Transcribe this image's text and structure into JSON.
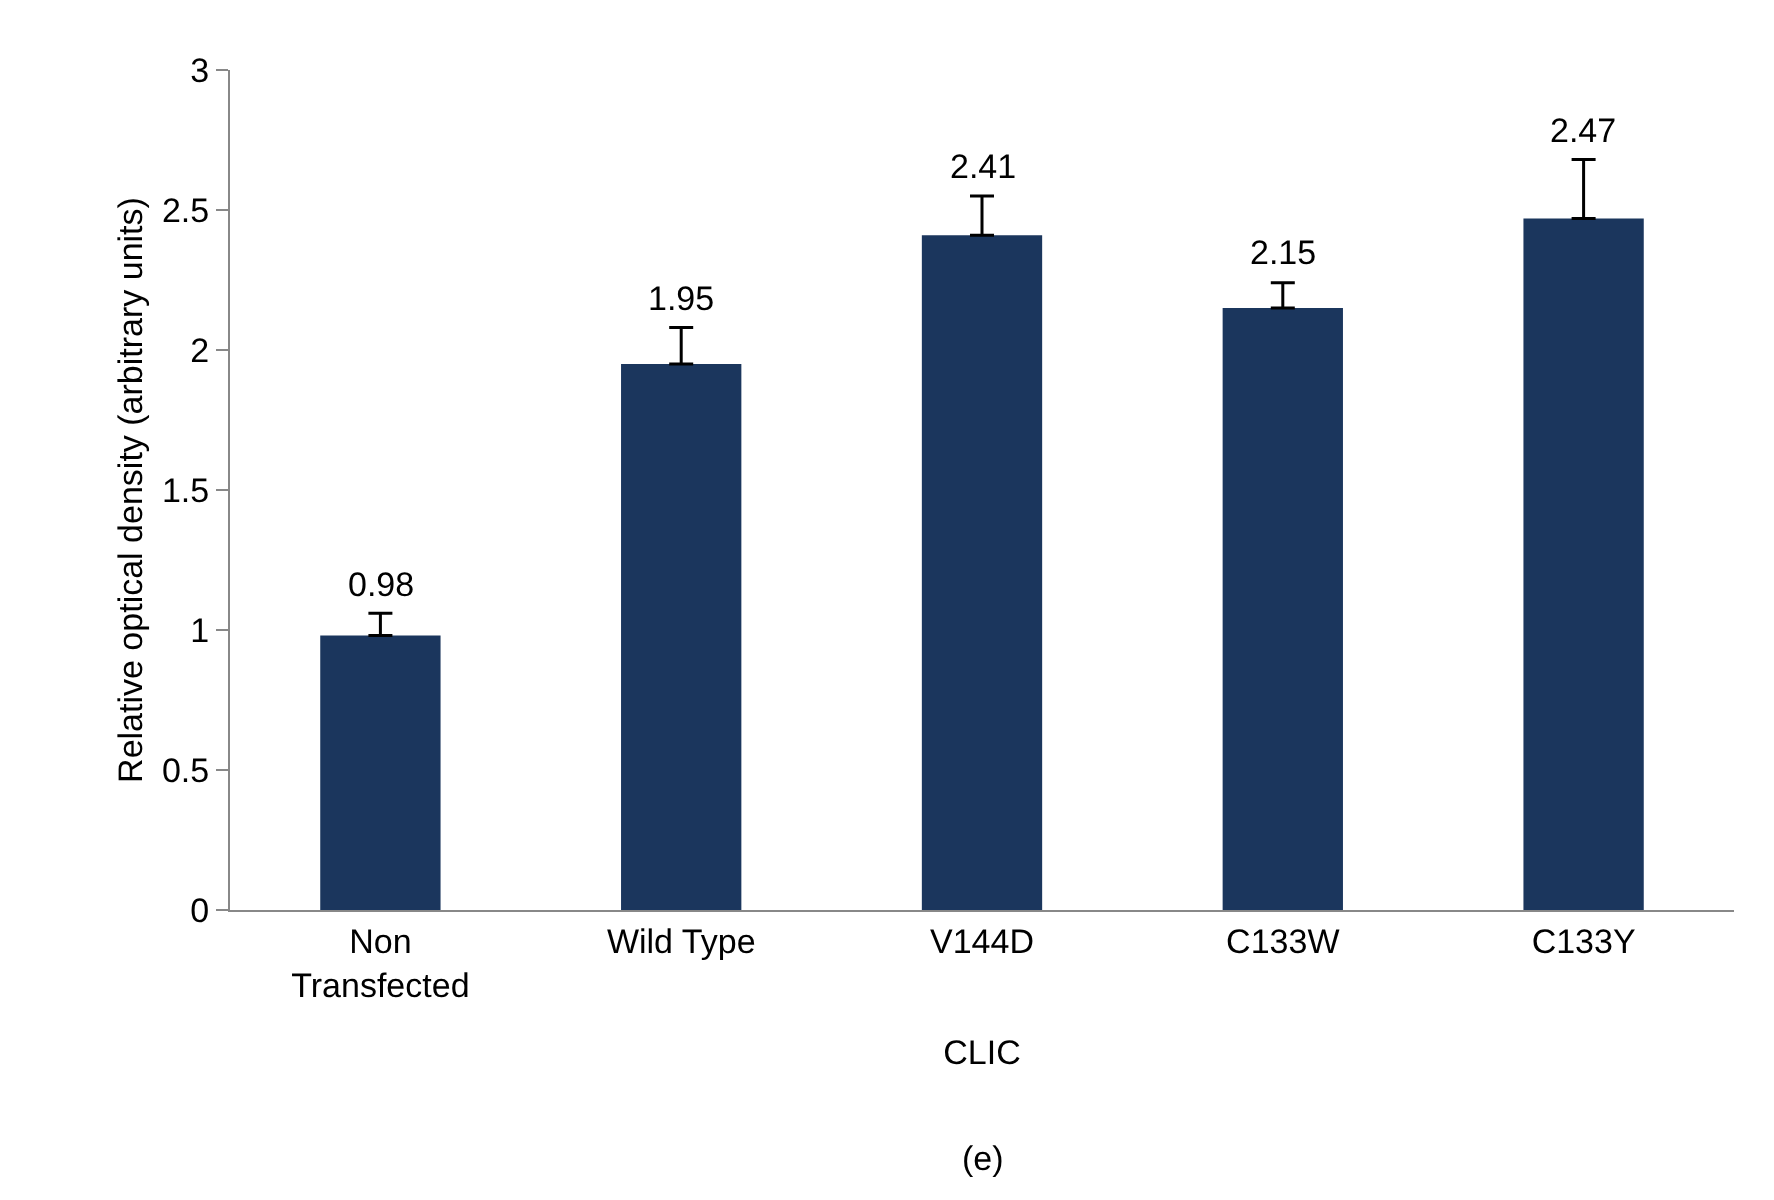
{
  "chart_data": {
    "type": "bar",
    "categories": [
      "Non\nTransfected",
      "Wild Type",
      "V144D",
      "C133W",
      "C133Y"
    ],
    "values": [
      0.98,
      1.95,
      2.41,
      2.15,
      2.47
    ],
    "color": "#1b365d",
    "errors": [
      [
        0.98,
        1.06
      ],
      [
        1.95,
        2.08
      ],
      [
        2.41,
        2.55
      ],
      [
        2.15,
        2.24
      ],
      [
        2.47,
        2.68
      ]
    ],
    "data_labels": true,
    "xlabel": "CLIC",
    "ylabel": "Relative optical density (arbitrary units)",
    "annotations": [
      "(e)"
    ],
    "ylim": [
      0,
      3
    ],
    "yticks": [
      0,
      0.5,
      1,
      1.5,
      2,
      2.5,
      3
    ],
    "grid": false
  }
}
